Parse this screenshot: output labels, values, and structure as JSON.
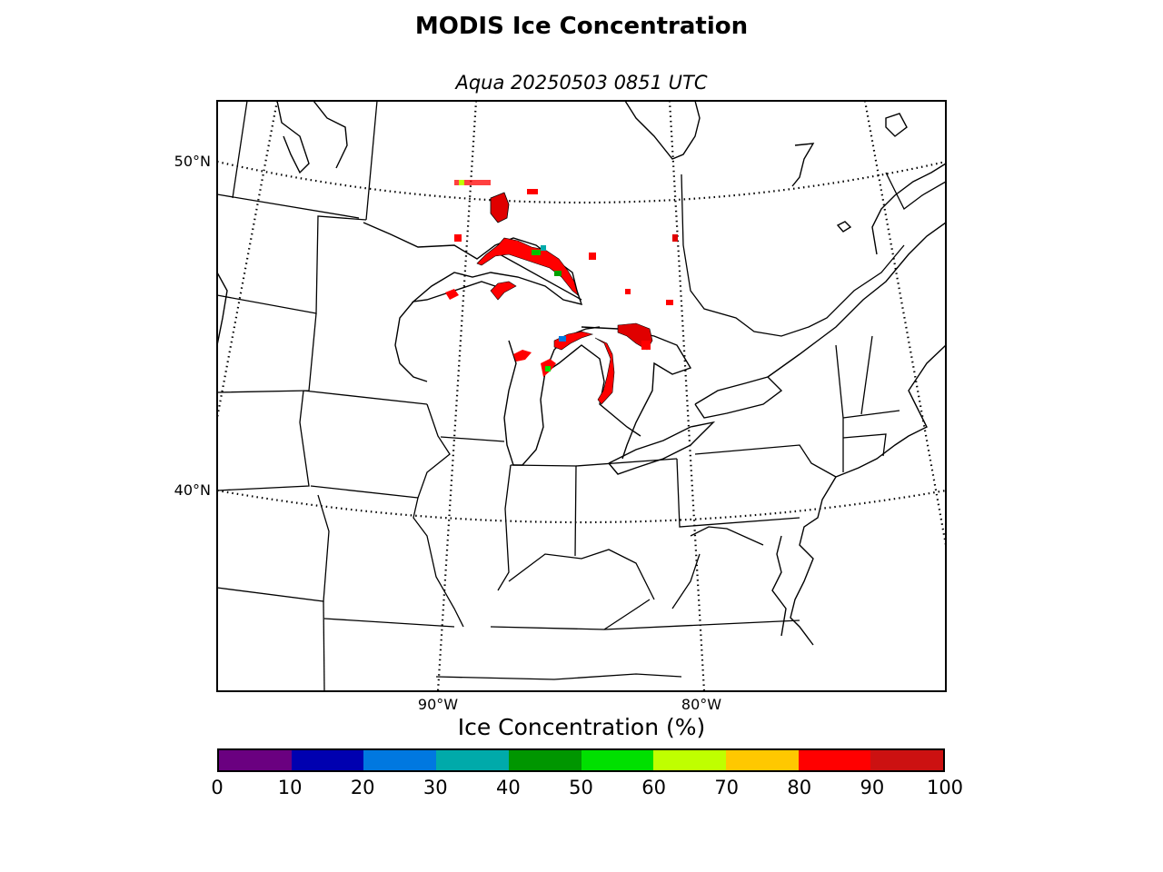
{
  "figure": {
    "title": "MODIS Ice Concentration",
    "subtitle": "Aqua 20250503 0851 UTC"
  },
  "map": {
    "lat_labels": [
      "50°N",
      "40°N"
    ],
    "lon_labels": [
      "90°W",
      "80°W"
    ],
    "graticule_style": "dotted",
    "ice_color_dominant": "#ff0000"
  },
  "colorbar": {
    "label": "Ice Concentration (%)",
    "ticks": [
      "0",
      "10",
      "20",
      "30",
      "40",
      "50",
      "60",
      "70",
      "80",
      "90",
      "100"
    ],
    "colors": [
      "#6a0080",
      "#0000b0",
      "#0078e0",
      "#00aaaa",
      "#009600",
      "#00e000",
      "#bfff00",
      "#ffc800",
      "#ff0000",
      "#cc1111"
    ]
  }
}
